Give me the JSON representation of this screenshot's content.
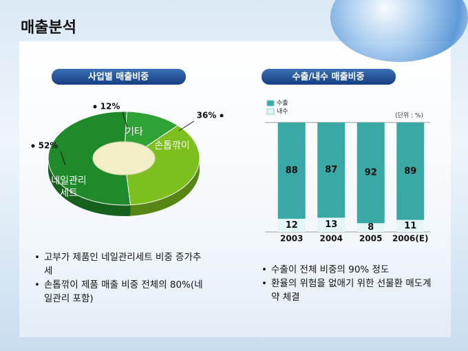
{
  "title": "매출분석",
  "chart_data": [
    {
      "type": "pie",
      "title": "사업별 매출비중",
      "categories": [
        "네일관리 세트",
        "기타",
        "손톱깎이"
      ],
      "values": [
        52,
        12,
        36
      ],
      "value_labels": [
        "52%",
        "12%",
        "36%"
      ],
      "colors": [
        "#1f8a2a",
        "#2fa236",
        "#7cbf1e"
      ]
    },
    {
      "type": "stacked-bar",
      "title": "수출/내수 매출비중",
      "unit": "(단위 : %)",
      "categories": [
        "2003",
        "2004",
        "2005",
        "2006(E)"
      ],
      "ylim": [
        0,
        100
      ],
      "series": [
        {
          "name": "내수",
          "color": "#e4f5f8",
          "values": [
            12,
            13,
            8,
            11
          ]
        },
        {
          "name": "수출",
          "color": "#3aa9a5",
          "values": [
            88,
            87,
            92,
            89
          ]
        }
      ]
    }
  ],
  "bullets_left": [
    "고부가 제품인 네일관리세트 비중 증가추세",
    "손톱깎이 제품 매출 비중 전체의 80%(네일관리 포함)"
  ],
  "bullets_right": [
    "수출이 전체 비중의 90% 정도",
    "환율의 위험을 없애기 위한 선물환 매도계약 체결"
  ]
}
